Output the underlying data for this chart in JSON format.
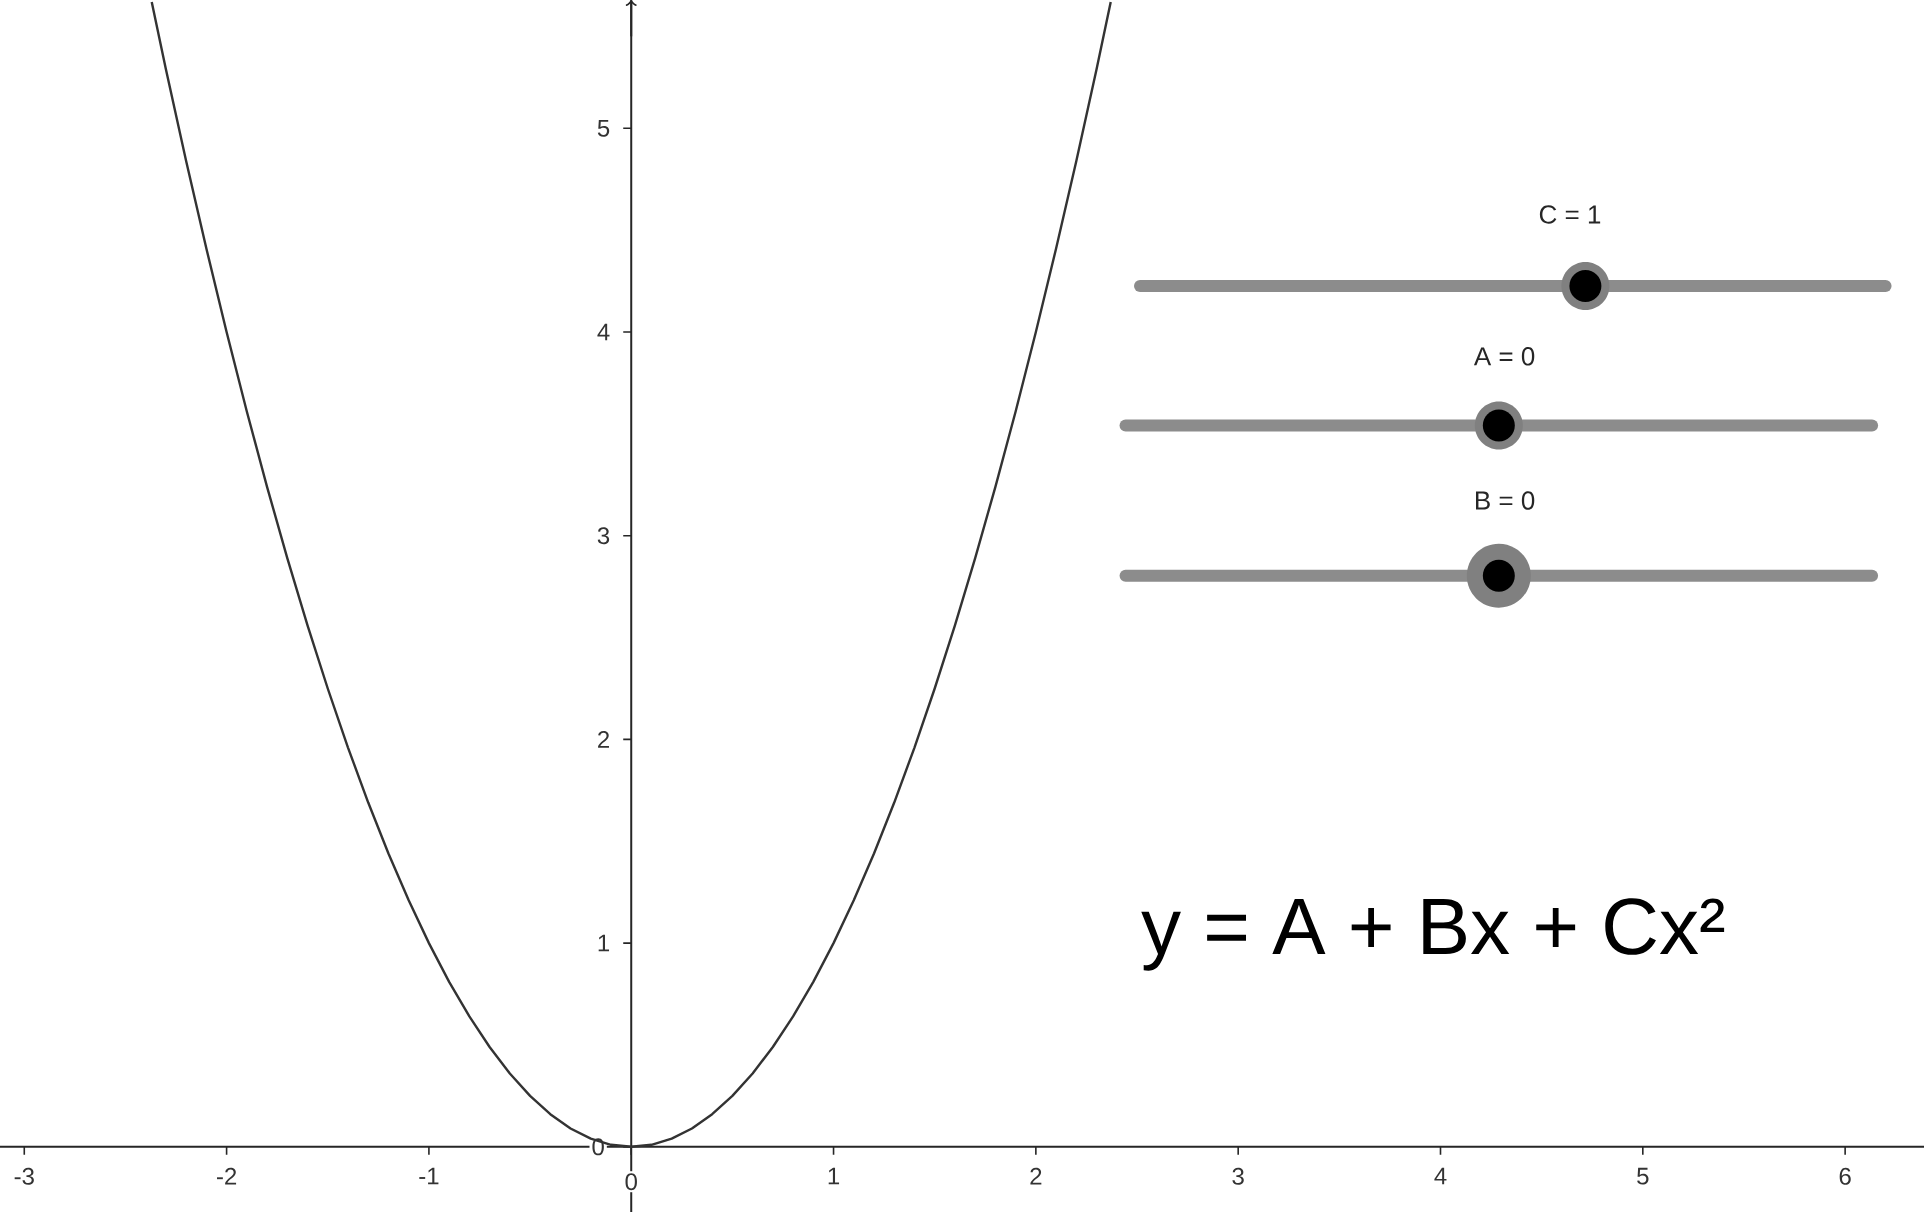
{
  "chart_data": {
    "type": "line",
    "x": [
      -2.37,
      -2.3,
      -2.2,
      -2.1,
      -2.0,
      -1.9,
      -1.8,
      -1.7,
      -1.6,
      -1.5,
      -1.4,
      -1.3,
      -1.2,
      -1.1,
      -1.0,
      -0.9,
      -0.8,
      -0.7,
      -0.6,
      -0.5,
      -0.4,
      -0.3,
      -0.2,
      -0.1,
      0,
      0.1,
      0.2,
      0.3,
      0.4,
      0.5,
      0.6,
      0.7,
      0.8,
      0.9,
      1.0,
      1.1,
      1.2,
      1.3,
      1.4,
      1.5,
      1.6,
      1.7,
      1.8,
      1.9,
      2.0,
      2.1,
      2.2,
      2.3,
      2.37
    ],
    "values": [
      5.62,
      5.29,
      4.84,
      4.41,
      4,
      3.61,
      3.24,
      2.89,
      2.56,
      2.25,
      1.96,
      1.69,
      1.44,
      1.21,
      1,
      0.81,
      0.64,
      0.49,
      0.36,
      0.25,
      0.16,
      0.09,
      0.04,
      0.01,
      0,
      0.01,
      0.04,
      0.09,
      0.16,
      0.25,
      0.36,
      0.49,
      0.64,
      0.81,
      1,
      1.21,
      1.44,
      1.69,
      1.96,
      2.25,
      2.56,
      2.89,
      3.24,
      3.61,
      4,
      4.41,
      4.84,
      5.29,
      5.62
    ],
    "color": "#333333",
    "xlim": [
      -3.12,
      6.39
    ],
    "ylim": [
      -0.32,
      5.63
    ],
    "xticks": [
      -3,
      -2,
      -1,
      0,
      1,
      2,
      3,
      4,
      5,
      6
    ],
    "yticks": [
      0,
      1,
      2,
      3,
      4,
      5
    ],
    "annotations": [
      "C = 1",
      "A = 0",
      "B = 0",
      "y = A + Bx + Cx²"
    ]
  }
}
